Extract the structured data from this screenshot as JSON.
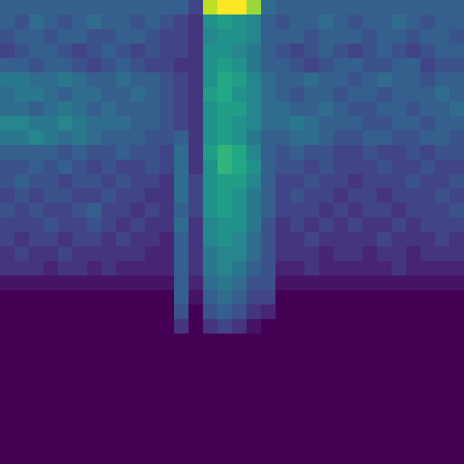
{
  "chart_data": {
    "type": "heatmap",
    "tick_labels": false,
    "zlim": [
      0,
      1
    ],
    "cells": [
      [
        0.3,
        0.3,
        0.3,
        0.3,
        0.3,
        0.3,
        0.3,
        0.3,
        0.3,
        0.3,
        0.3,
        0.3,
        0.3,
        0.2,
        0.9,
        1.0,
        1.0,
        0.85,
        0.35,
        0.3,
        0.3,
        0.3,
        0.3,
        0.3,
        0.3,
        0.3,
        0.3,
        0.3,
        0.3,
        0.3,
        0.3,
        0.3
      ],
      [
        0.3,
        0.25,
        0.35,
        0.3,
        0.25,
        0.3,
        0.35,
        0.3,
        0.3,
        0.25,
        0.3,
        0.25,
        0.2,
        0.15,
        0.5,
        0.55,
        0.5,
        0.45,
        0.3,
        0.25,
        0.3,
        0.3,
        0.35,
        0.3,
        0.25,
        0.3,
        0.3,
        0.35,
        0.3,
        0.25,
        0.3,
        0.3
      ],
      [
        0.25,
        0.3,
        0.3,
        0.25,
        0.3,
        0.3,
        0.25,
        0.25,
        0.3,
        0.3,
        0.25,
        0.2,
        0.2,
        0.15,
        0.45,
        0.5,
        0.5,
        0.45,
        0.3,
        0.3,
        0.3,
        0.25,
        0.3,
        0.3,
        0.3,
        0.25,
        0.3,
        0.3,
        0.25,
        0.3,
        0.3,
        0.25
      ],
      [
        0.2,
        0.25,
        0.3,
        0.3,
        0.25,
        0.2,
        0.25,
        0.3,
        0.25,
        0.2,
        0.25,
        0.2,
        0.2,
        0.15,
        0.5,
        0.5,
        0.45,
        0.4,
        0.3,
        0.25,
        0.2,
        0.25,
        0.3,
        0.25,
        0.2,
        0.25,
        0.3,
        0.25,
        0.2,
        0.25,
        0.3,
        0.3
      ],
      [
        0.3,
        0.3,
        0.25,
        0.3,
        0.3,
        0.25,
        0.2,
        0.25,
        0.3,
        0.25,
        0.2,
        0.2,
        0.15,
        0.15,
        0.5,
        0.55,
        0.5,
        0.4,
        0.3,
        0.3,
        0.25,
        0.2,
        0.25,
        0.3,
        0.3,
        0.25,
        0.25,
        0.3,
        0.3,
        0.2,
        0.25,
        0.25
      ],
      [
        0.4,
        0.4,
        0.35,
        0.35,
        0.4,
        0.35,
        0.3,
        0.3,
        0.35,
        0.3,
        0.3,
        0.25,
        0.2,
        0.15,
        0.5,
        0.6,
        0.55,
        0.45,
        0.35,
        0.3,
        0.3,
        0.35,
        0.3,
        0.3,
        0.25,
        0.3,
        0.35,
        0.3,
        0.3,
        0.25,
        0.3,
        0.3
      ],
      [
        0.35,
        0.4,
        0.4,
        0.35,
        0.3,
        0.35,
        0.35,
        0.3,
        0.3,
        0.35,
        0.3,
        0.25,
        0.2,
        0.15,
        0.55,
        0.6,
        0.5,
        0.45,
        0.35,
        0.3,
        0.25,
        0.3,
        0.3,
        0.25,
        0.3,
        0.3,
        0.25,
        0.3,
        0.3,
        0.3,
        0.35,
        0.3
      ],
      [
        0.35,
        0.35,
        0.3,
        0.35,
        0.4,
        0.35,
        0.3,
        0.35,
        0.3,
        0.3,
        0.3,
        0.25,
        0.2,
        0.15,
        0.5,
        0.55,
        0.55,
        0.45,
        0.35,
        0.35,
        0.3,
        0.3,
        0.35,
        0.3,
        0.25,
        0.25,
        0.3,
        0.3,
        0.25,
        0.3,
        0.3,
        0.35
      ],
      [
        0.45,
        0.45,
        0.4,
        0.4,
        0.45,
        0.4,
        0.35,
        0.35,
        0.35,
        0.3,
        0.3,
        0.25,
        0.2,
        0.15,
        0.5,
        0.55,
        0.5,
        0.45,
        0.35,
        0.35,
        0.4,
        0.35,
        0.3,
        0.3,
        0.3,
        0.25,
        0.25,
        0.3,
        0.3,
        0.25,
        0.3,
        0.3
      ],
      [
        0.4,
        0.4,
        0.45,
        0.4,
        0.35,
        0.4,
        0.35,
        0.3,
        0.3,
        0.3,
        0.25,
        0.25,
        0.3,
        0.15,
        0.5,
        0.55,
        0.5,
        0.4,
        0.3,
        0.3,
        0.35,
        0.35,
        0.3,
        0.25,
        0.25,
        0.3,
        0.3,
        0.25,
        0.25,
        0.3,
        0.3,
        0.25
      ],
      [
        0.3,
        0.3,
        0.3,
        0.3,
        0.25,
        0.3,
        0.25,
        0.25,
        0.3,
        0.25,
        0.25,
        0.2,
        0.35,
        0.15,
        0.55,
        0.65,
        0.6,
        0.45,
        0.3,
        0.25,
        0.3,
        0.25,
        0.25,
        0.2,
        0.2,
        0.25,
        0.2,
        0.2,
        0.25,
        0.2,
        0.25,
        0.25
      ],
      [
        0.25,
        0.25,
        0.3,
        0.25,
        0.3,
        0.25,
        0.2,
        0.25,
        0.2,
        0.2,
        0.25,
        0.2,
        0.35,
        0.15,
        0.5,
        0.65,
        0.6,
        0.5,
        0.3,
        0.25,
        0.25,
        0.2,
        0.25,
        0.2,
        0.2,
        0.2,
        0.25,
        0.2,
        0.2,
        0.25,
        0.2,
        0.2
      ],
      [
        0.25,
        0.3,
        0.25,
        0.25,
        0.2,
        0.25,
        0.25,
        0.2,
        0.25,
        0.2,
        0.2,
        0.15,
        0.35,
        0.2,
        0.5,
        0.55,
        0.55,
        0.45,
        0.3,
        0.2,
        0.2,
        0.25,
        0.2,
        0.2,
        0.15,
        0.2,
        0.2,
        0.2,
        0.25,
        0.2,
        0.2,
        0.25
      ],
      [
        0.2,
        0.25,
        0.2,
        0.25,
        0.25,
        0.2,
        0.2,
        0.25,
        0.2,
        0.2,
        0.15,
        0.15,
        0.35,
        0.2,
        0.5,
        0.55,
        0.5,
        0.4,
        0.3,
        0.2,
        0.25,
        0.2,
        0.2,
        0.15,
        0.2,
        0.2,
        0.15,
        0.2,
        0.2,
        0.2,
        0.25,
        0.2
      ],
      [
        0.25,
        0.2,
        0.25,
        0.2,
        0.2,
        0.25,
        0.3,
        0.2,
        0.2,
        0.15,
        0.2,
        0.15,
        0.3,
        0.2,
        0.5,
        0.55,
        0.5,
        0.4,
        0.3,
        0.2,
        0.2,
        0.2,
        0.15,
        0.2,
        0.15,
        0.2,
        0.2,
        0.15,
        0.2,
        0.2,
        0.2,
        0.25
      ],
      [
        0.2,
        0.2,
        0.2,
        0.25,
        0.2,
        0.2,
        0.25,
        0.2,
        0.15,
        0.2,
        0.15,
        0.15,
        0.35,
        0.15,
        0.45,
        0.5,
        0.5,
        0.4,
        0.25,
        0.15,
        0.2,
        0.15,
        0.2,
        0.15,
        0.2,
        0.15,
        0.15,
        0.2,
        0.15,
        0.2,
        0.2,
        0.2
      ],
      [
        0.2,
        0.15,
        0.2,
        0.2,
        0.15,
        0.2,
        0.2,
        0.15,
        0.2,
        0.15,
        0.15,
        0.1,
        0.3,
        0.15,
        0.45,
        0.5,
        0.45,
        0.35,
        0.25,
        0.15,
        0.15,
        0.2,
        0.15,
        0.15,
        0.15,
        0.15,
        0.2,
        0.15,
        0.15,
        0.15,
        0.2,
        0.15
      ],
      [
        0.15,
        0.2,
        0.15,
        0.15,
        0.2,
        0.15,
        0.15,
        0.15,
        0.15,
        0.15,
        0.1,
        0.1,
        0.3,
        0.15,
        0.4,
        0.45,
        0.45,
        0.35,
        0.25,
        0.15,
        0.15,
        0.15,
        0.1,
        0.15,
        0.15,
        0.1,
        0.15,
        0.15,
        0.1,
        0.15,
        0.15,
        0.15
      ],
      [
        0.15,
        0.15,
        0.15,
        0.1,
        0.15,
        0.15,
        0.1,
        0.15,
        0.1,
        0.1,
        0.1,
        0.1,
        0.3,
        0.15,
        0.4,
        0.45,
        0.4,
        0.3,
        0.25,
        0.1,
        0.1,
        0.15,
        0.1,
        0.1,
        0.1,
        0.1,
        0.1,
        0.15,
        0.1,
        0.1,
        0.1,
        0.1
      ],
      [
        0.05,
        0.05,
        0.05,
        0.05,
        0.05,
        0.05,
        0.05,
        0.05,
        0.05,
        0.05,
        0.05,
        0.05,
        0.3,
        0.1,
        0.35,
        0.4,
        0.35,
        0.25,
        0.25,
        0.05,
        0.05,
        0.05,
        0.05,
        0.05,
        0.05,
        0.05,
        0.05,
        0.05,
        0.05,
        0.05,
        0.05,
        0.05
      ],
      [
        0,
        0,
        0,
        0,
        0,
        0,
        0,
        0,
        0,
        0,
        0,
        0,
        0.3,
        0.05,
        0.3,
        0.35,
        0.3,
        0.2,
        0.2,
        0,
        0,
        0,
        0,
        0,
        0,
        0,
        0,
        0,
        0,
        0,
        0,
        0
      ],
      [
        0,
        0,
        0,
        0,
        0,
        0,
        0,
        0,
        0,
        0,
        0,
        0,
        0.25,
        0,
        0.25,
        0.3,
        0.25,
        0.15,
        0.1,
        0,
        0,
        0,
        0,
        0,
        0,
        0,
        0,
        0,
        0,
        0,
        0,
        0
      ],
      [
        0,
        0,
        0,
        0,
        0,
        0,
        0,
        0,
        0,
        0,
        0,
        0,
        0.15,
        0,
        0.15,
        0.2,
        0.15,
        0.05,
        0,
        0,
        0,
        0,
        0,
        0,
        0,
        0,
        0,
        0,
        0,
        0,
        0,
        0
      ],
      [
        0,
        0,
        0,
        0,
        0,
        0,
        0,
        0,
        0,
        0,
        0,
        0,
        0,
        0,
        0,
        0,
        0,
        0,
        0,
        0,
        0,
        0,
        0,
        0,
        0,
        0,
        0,
        0,
        0,
        0,
        0,
        0
      ],
      [
        0,
        0,
        0,
        0,
        0,
        0,
        0,
        0,
        0,
        0,
        0,
        0,
        0,
        0,
        0,
        0,
        0,
        0,
        0,
        0,
        0,
        0,
        0,
        0,
        0,
        0,
        0,
        0,
        0,
        0,
        0,
        0
      ],
      [
        0,
        0,
        0,
        0,
        0,
        0,
        0,
        0,
        0,
        0,
        0,
        0,
        0,
        0,
        0,
        0,
        0,
        0,
        0,
        0,
        0,
        0,
        0,
        0,
        0,
        0,
        0,
        0,
        0,
        0,
        0,
        0
      ],
      [
        0,
        0,
        0,
        0,
        0,
        0,
        0,
        0,
        0,
        0,
        0,
        0,
        0,
        0,
        0,
        0,
        0,
        0,
        0,
        0,
        0,
        0,
        0,
        0,
        0,
        0,
        0,
        0,
        0,
        0,
        0,
        0
      ],
      [
        0,
        0,
        0,
        0,
        0,
        0,
        0,
        0,
        0,
        0,
        0,
        0,
        0,
        0,
        0,
        0,
        0,
        0,
        0,
        0,
        0,
        0,
        0,
        0,
        0,
        0,
        0,
        0,
        0,
        0,
        0,
        0
      ],
      [
        0,
        0,
        0,
        0,
        0,
        0,
        0,
        0,
        0,
        0,
        0,
        0,
        0,
        0,
        0,
        0,
        0,
        0,
        0,
        0,
        0,
        0,
        0,
        0,
        0,
        0,
        0,
        0,
        0,
        0,
        0,
        0
      ],
      [
        0,
        0,
        0,
        0,
        0,
        0,
        0,
        0,
        0,
        0,
        0,
        0,
        0,
        0,
        0,
        0,
        0,
        0,
        0,
        0,
        0,
        0,
        0,
        0,
        0,
        0,
        0,
        0,
        0,
        0,
        0,
        0
      ],
      [
        0,
        0,
        0,
        0,
        0,
        0,
        0,
        0,
        0,
        0,
        0,
        0,
        0,
        0,
        0,
        0,
        0,
        0,
        0,
        0,
        0,
        0,
        0,
        0,
        0,
        0,
        0,
        0,
        0,
        0,
        0,
        0
      ],
      [
        0,
        0,
        0,
        0,
        0,
        0,
        0,
        0,
        0,
        0,
        0,
        0,
        0,
        0,
        0,
        0,
        0,
        0,
        0,
        0,
        0,
        0,
        0,
        0,
        0,
        0,
        0,
        0,
        0,
        0,
        0,
        0
      ]
    ]
  }
}
